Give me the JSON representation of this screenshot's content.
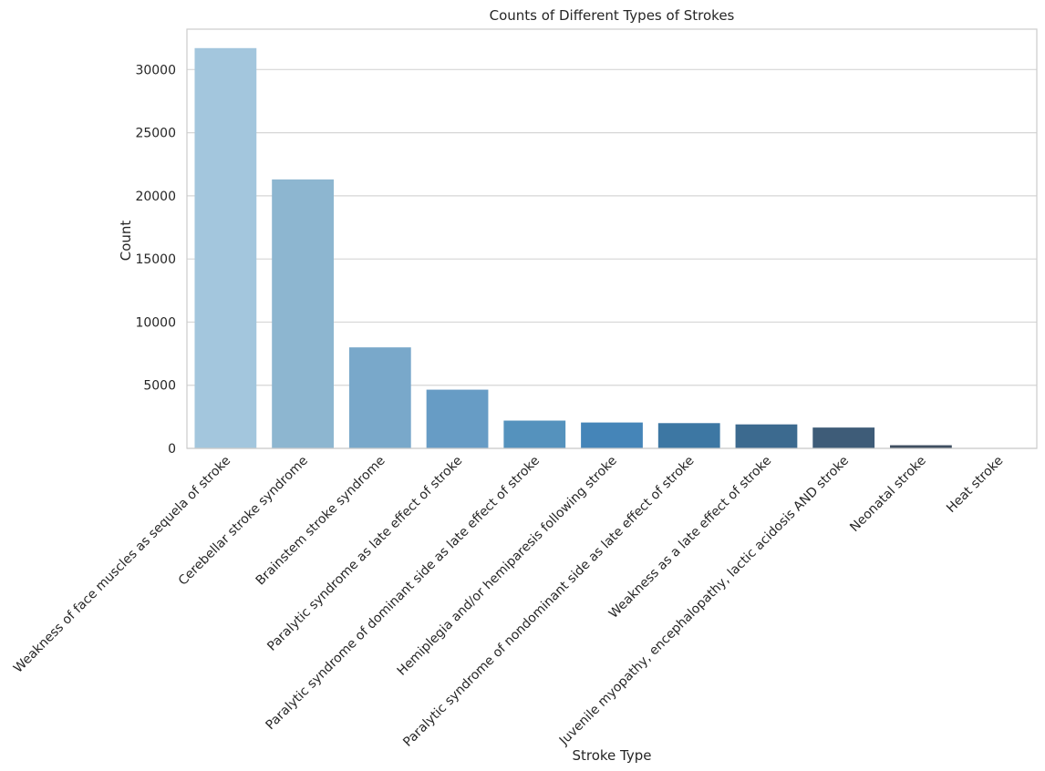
{
  "chart_data": {
    "type": "bar",
    "title": "Counts of Different Types of Strokes",
    "xlabel": "Stroke Type",
    "ylabel": "Count",
    "ylim": [
      0,
      33200
    ],
    "yticks": [
      0,
      5000,
      10000,
      15000,
      20000,
      25000,
      30000
    ],
    "grid": true,
    "categories": [
      "Weakness of face muscles as sequela of stroke",
      "Cerebellar stroke syndrome",
      "Brainstem stroke syndrome",
      "Paralytic syndrome as late effect of stroke",
      "Paralytic syndrome of dominant side as late effect of stroke",
      "Hemiplegia and/or hemiparesis following stroke",
      "Paralytic syndrome of nondominant side as late effect of stroke",
      "Weakness as a late effect of stroke",
      "Juvenile myopathy, encephalopathy, lactic acidosis AND stroke",
      "Neonatal stroke",
      "Heat stroke"
    ],
    "values": [
      31700,
      21300,
      8000,
      4650,
      2200,
      2050,
      2000,
      1900,
      1650,
      250,
      30
    ],
    "colors": [
      "#a3c6dd",
      "#8db6d0",
      "#79a8ca",
      "#679cc5",
      "#5592bd",
      "#4585b8",
      "#3d77a3",
      "#3c6a8f",
      "#3e5c78",
      "#3f4f61",
      "#3d4550"
    ]
  }
}
